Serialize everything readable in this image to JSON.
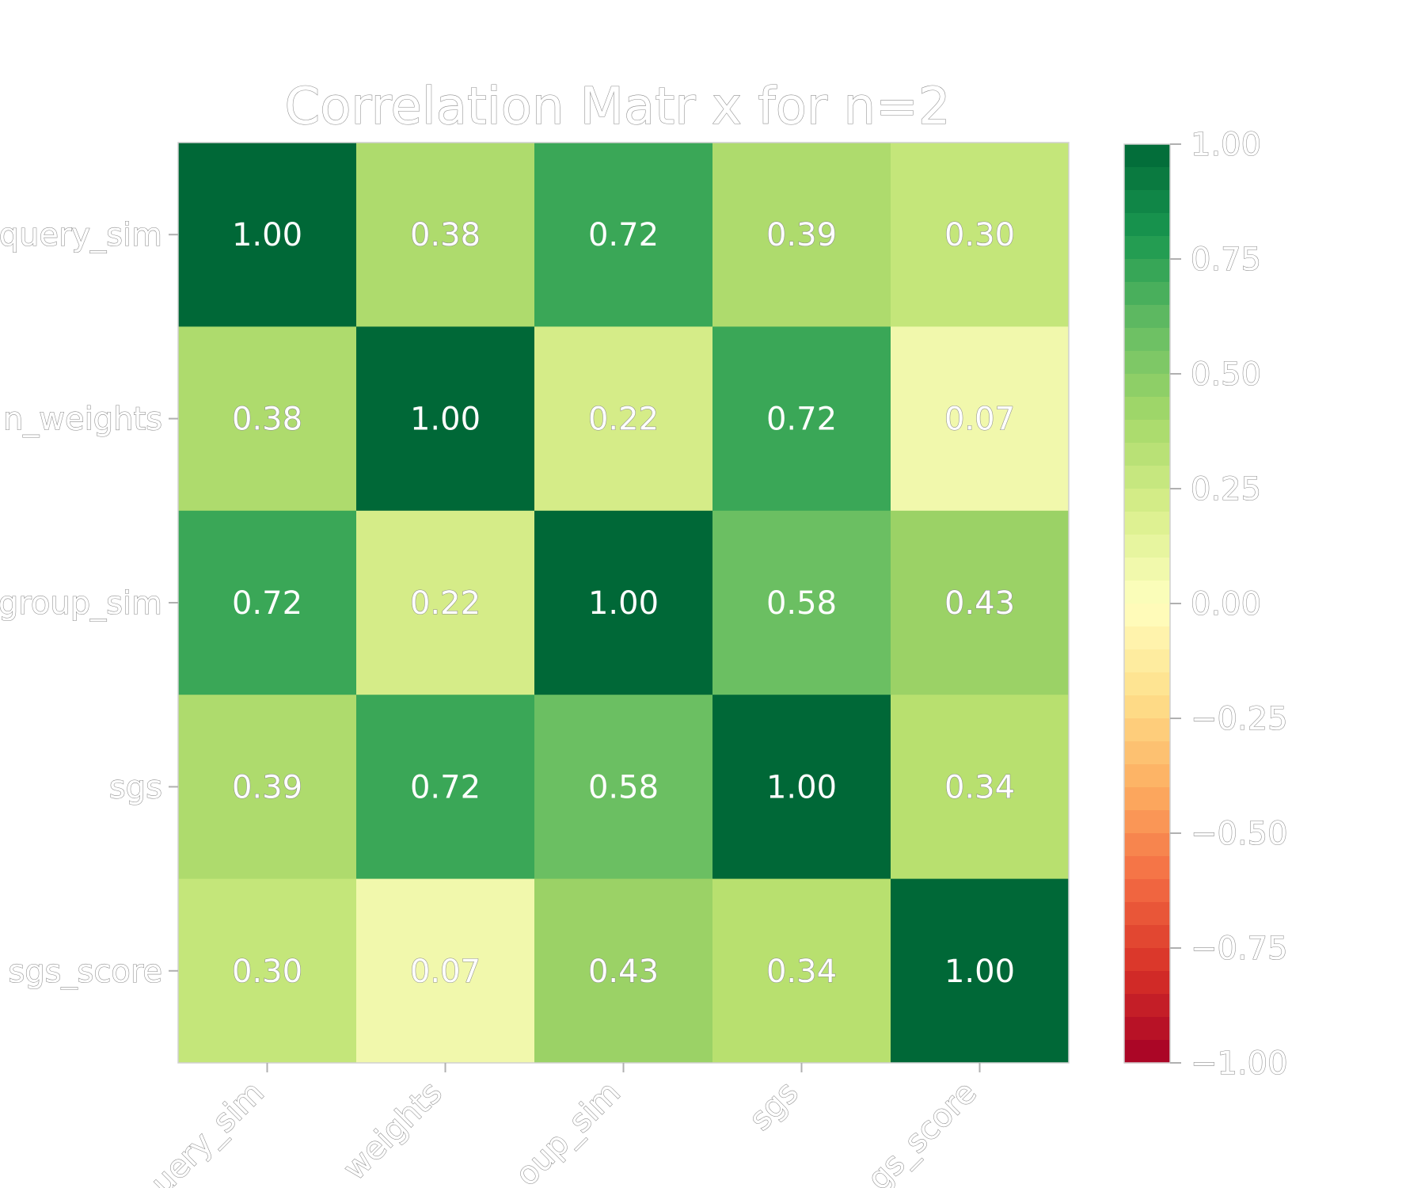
{
  "chart_data": {
    "type": "heatmap",
    "title": "Correlation Matr x for n=2",
    "row_labels": [
      "query_sim",
      "n_weights",
      "group_sim",
      "sgs",
      "sgs_score"
    ],
    "col_labels": [
      "uery_sim",
      "weights",
      "oup_sim",
      "sgs",
      "gs_score"
    ],
    "values": [
      [
        1.0,
        0.38,
        0.72,
        0.39,
        0.3
      ],
      [
        0.38,
        1.0,
        0.22,
        0.72,
        0.07
      ],
      [
        0.72,
        0.22,
        1.0,
        0.58,
        0.43
      ],
      [
        0.39,
        0.72,
        0.58,
        1.0,
        0.34
      ],
      [
        0.3,
        0.07,
        0.43,
        0.34,
        1.0
      ]
    ],
    "value_labels": [
      [
        "1.00",
        "0.38",
        "0.72",
        "0.39",
        "0.30"
      ],
      [
        "0.38",
        "1.00",
        "0.22",
        "0.72",
        "0.07"
      ],
      [
        "0.72",
        "0.22",
        "1.00",
        "0.58",
        "0.43"
      ],
      [
        "0.39",
        "0.72",
        "0.58",
        "1.00",
        "0.34"
      ],
      [
        "0.30",
        "0.07",
        "0.43",
        "0.34",
        "1.00"
      ]
    ],
    "colormap": "RdYlGn",
    "vmin": -1.0,
    "vmax": 1.0,
    "colorbar": {
      "ticks": [
        1.0,
        0.75,
        0.5,
        0.25,
        0.0,
        -0.25,
        -0.5,
        -0.75,
        -1.0
      ],
      "tick_labels": [
        "1.00",
        "0.75",
        "0.50",
        "0.25",
        "0.00",
        "−0.25",
        "−0.50",
        "−0.75",
        "−1.00"
      ],
      "placement": "right"
    },
    "colors": {
      "1.00": "#006837",
      "0.72": "#3aa757",
      "0.58": "#6bbf62",
      "0.43": "#9bd266",
      "0.39": "#aedb6d",
      "0.38": "#aedb6d",
      "0.34": "#b8e06f",
      "0.30": "#c4e67a",
      "0.22": "#d5ec88",
      "0.07": "#f1f8ac"
    }
  }
}
